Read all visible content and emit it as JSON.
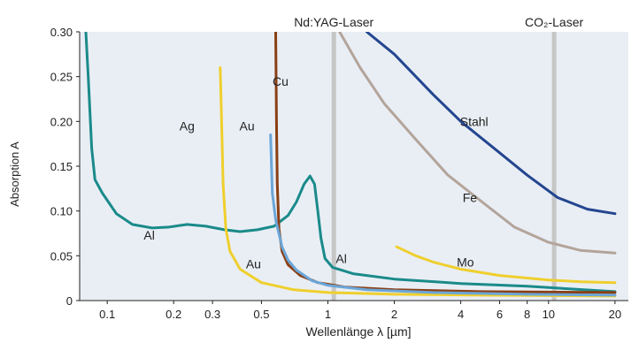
{
  "chart_data": {
    "type": "line",
    "title": "",
    "xlabel": "Wellenlänge  λ [µm]",
    "ylabel": "Absorption A",
    "xscale": "log",
    "xlim": [
      0.075,
      23
    ],
    "ylim": [
      0,
      0.3
    ],
    "grid": false,
    "legend": "none",
    "background": "#e9eef5",
    "xticks": [
      {
        "v": 0.1,
        "label": "0.1"
      },
      {
        "v": 0.2,
        "label": "0.2"
      },
      {
        "v": 0.3,
        "label": "0.3"
      },
      {
        "v": 0.5,
        "label": "0.5"
      },
      {
        "v": 1,
        "label": "1"
      },
      {
        "v": 2,
        "label": "2"
      },
      {
        "v": 4,
        "label": "4"
      },
      {
        "v": 6,
        "label": "6"
      },
      {
        "v": 8,
        "label": "8"
      },
      {
        "v": 10,
        "label": "10"
      },
      {
        "v": 20,
        "label": "20"
      }
    ],
    "yticks": [
      {
        "v": 0,
        "label": "0"
      },
      {
        "v": 0.05,
        "label": "0.05"
      },
      {
        "v": 0.1,
        "label": "0.10"
      },
      {
        "v": 0.15,
        "label": "0.15"
      },
      {
        "v": 0.2,
        "label": "0.20"
      },
      {
        "v": 0.25,
        "label": "0.25"
      },
      {
        "v": 0.3,
        "label": "0.30"
      }
    ],
    "markers": [
      {
        "x": 1.064,
        "label": "Nd:YAG-Laser",
        "color": "#c6c6c6"
      },
      {
        "x": 10.6,
        "label": "CO₂-Laser",
        "color": "#c6c6c6"
      }
    ],
    "series": [
      {
        "name": "Al",
        "color": "#1a8a8a",
        "points": [
          [
            0.08,
            0.3
          ],
          [
            0.082,
            0.25
          ],
          [
            0.085,
            0.17
          ],
          [
            0.088,
            0.135
          ],
          [
            0.095,
            0.12
          ],
          [
            0.11,
            0.097
          ],
          [
            0.13,
            0.085
          ],
          [
            0.16,
            0.081
          ],
          [
            0.19,
            0.082
          ],
          [
            0.23,
            0.085
          ],
          [
            0.28,
            0.083
          ],
          [
            0.34,
            0.079
          ],
          [
            0.4,
            0.077
          ],
          [
            0.48,
            0.079
          ],
          [
            0.57,
            0.083
          ],
          [
            0.66,
            0.095
          ],
          [
            0.72,
            0.11
          ],
          [
            0.78,
            0.13
          ],
          [
            0.83,
            0.139
          ],
          [
            0.87,
            0.13
          ],
          [
            0.9,
            0.1
          ],
          [
            0.93,
            0.07
          ],
          [
            0.97,
            0.047
          ],
          [
            1.05,
            0.037
          ],
          [
            1.3,
            0.03
          ],
          [
            2,
            0.024
          ],
          [
            4,
            0.019
          ],
          [
            8,
            0.016
          ],
          [
            20,
            0.01
          ]
        ]
      },
      {
        "name": "Ag",
        "color": "#efcf2d",
        "points": [
          [
            0.325,
            0.26
          ],
          [
            0.33,
            0.2
          ],
          [
            0.335,
            0.13
          ],
          [
            0.345,
            0.08
          ],
          [
            0.36,
            0.055
          ],
          [
            0.4,
            0.035
          ],
          [
            0.5,
            0.02
          ],
          [
            0.7,
            0.012
          ],
          [
            1,
            0.009
          ],
          [
            2,
            0.007
          ],
          [
            5,
            0.006
          ],
          [
            20,
            0.005
          ]
        ]
      },
      {
        "name": "Cu",
        "color": "#8a3f14",
        "points": [
          [
            0.58,
            0.3
          ],
          [
            0.585,
            0.2
          ],
          [
            0.59,
            0.13
          ],
          [
            0.6,
            0.08
          ],
          [
            0.62,
            0.055
          ],
          [
            0.66,
            0.04
          ],
          [
            0.75,
            0.028
          ],
          [
            0.9,
            0.02
          ],
          [
            1.2,
            0.015
          ],
          [
            2,
            0.012
          ],
          [
            5,
            0.01
          ],
          [
            20,
            0.009
          ]
        ]
      },
      {
        "name": "Au",
        "color": "#6ba6d8",
        "points": [
          [
            0.55,
            0.185
          ],
          [
            0.56,
            0.12
          ],
          [
            0.58,
            0.09
          ],
          [
            0.62,
            0.06
          ],
          [
            0.66,
            0.045
          ],
          [
            0.72,
            0.034
          ],
          [
            0.85,
            0.022
          ],
          [
            1,
            0.017
          ],
          [
            1.5,
            0.012
          ],
          [
            3,
            0.009
          ],
          [
            8,
            0.007
          ],
          [
            20,
            0.006
          ]
        ]
      },
      {
        "name": "Mo",
        "color": "#efcf2d",
        "points": [
          [
            2.05,
            0.06
          ],
          [
            2.5,
            0.05
          ],
          [
            3,
            0.043
          ],
          [
            4,
            0.035
          ],
          [
            6,
            0.028
          ],
          [
            10,
            0.023
          ],
          [
            14,
            0.021
          ],
          [
            20,
            0.02
          ]
        ]
      },
      {
        "name": "Fe",
        "color": "#b3a49a",
        "points": [
          [
            1.13,
            0.3
          ],
          [
            1.4,
            0.26
          ],
          [
            1.8,
            0.22
          ],
          [
            2.5,
            0.18
          ],
          [
            3.5,
            0.14
          ],
          [
            5,
            0.11
          ],
          [
            7,
            0.082
          ],
          [
            10,
            0.065
          ],
          [
            14,
            0.056
          ],
          [
            20,
            0.053
          ]
        ]
      },
      {
        "name": "Stahl",
        "color": "#24468f",
        "points": [
          [
            1.5,
            0.3
          ],
          [
            2,
            0.275
          ],
          [
            3,
            0.23
          ],
          [
            4,
            0.2
          ],
          [
            6,
            0.165
          ],
          [
            8,
            0.14
          ],
          [
            11,
            0.115
          ],
          [
            15,
            0.102
          ],
          [
            20,
            0.097
          ]
        ]
      }
    ],
    "annotations": [
      {
        "text": "Al",
        "x": 0.155,
        "y": 0.068
      },
      {
        "text": "Ag",
        "x": 0.23,
        "y": 0.19
      },
      {
        "text": "Au",
        "x": 0.43,
        "y": 0.19
      },
      {
        "text": "Cu",
        "x": 0.61,
        "y": 0.24
      },
      {
        "text": "Au",
        "x": 0.46,
        "y": 0.036
      },
      {
        "text": "Al",
        "x": 1.15,
        "y": 0.042
      },
      {
        "text": "Mo",
        "x": 4.2,
        "y": 0.038
      },
      {
        "text": "Fe",
        "x": 4.4,
        "y": 0.11
      },
      {
        "text": "Stahl",
        "x": 4.6,
        "y": 0.195
      }
    ]
  }
}
